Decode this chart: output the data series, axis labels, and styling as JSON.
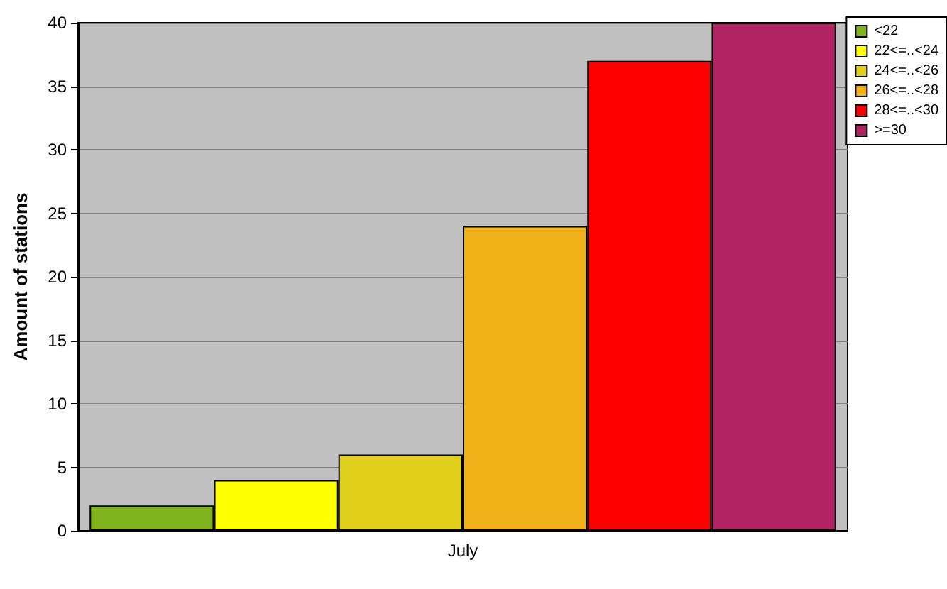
{
  "chart_data": {
    "type": "bar",
    "ylabel": "Amount of stations",
    "categories": [
      "July"
    ],
    "series": [
      {
        "name": "<22",
        "color": "#7fb21c",
        "values": [
          2
        ]
      },
      {
        "name": "22<=..<24",
        "color": "#ffff00",
        "values": [
          4
        ]
      },
      {
        "name": "24<=..<26",
        "color": "#e0d01c",
        "values": [
          6
        ]
      },
      {
        "name": "26<=..<28",
        "color": "#f0b018",
        "values": [
          24
        ]
      },
      {
        "name": "28<=..<30",
        "color": "#ff0000",
        "values": [
          37
        ]
      },
      {
        "name": ">=30",
        "color": "#b02462",
        "values": [
          40
        ]
      }
    ],
    "ylim": [
      0,
      40
    ],
    "yticks": [
      0,
      5,
      10,
      15,
      20,
      25,
      30,
      35,
      40
    ],
    "grid": "y",
    "legend": "top right"
  }
}
